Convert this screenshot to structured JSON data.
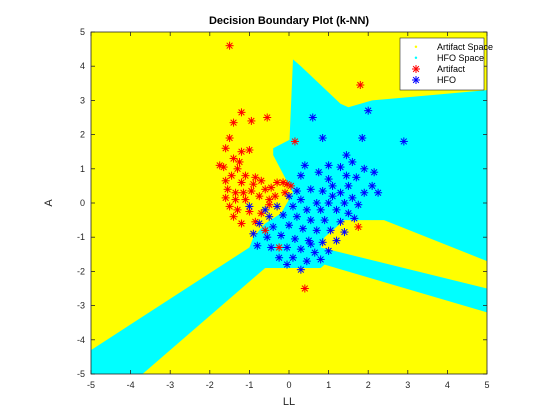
{
  "chart_data": {
    "type": "scatter",
    "title": "Decision Boundary Plot (k-NN)",
    "xlabel": "LL",
    "ylabel": "A",
    "xlim": [
      -5,
      5
    ],
    "ylim": [
      -5,
      5
    ],
    "xticks": [
      "-5",
      "-4",
      "-3",
      "-2",
      "-1",
      "0",
      "1",
      "2",
      "3",
      "4",
      "5"
    ],
    "yticks": [
      "-5",
      "-4",
      "-3",
      "-2",
      "-1",
      "0",
      "1",
      "2",
      "3",
      "4",
      "5"
    ],
    "grid": false,
    "legend_position": "top-right",
    "legend": [
      "Artifact Space",
      "HFO Space",
      "Artifact",
      "HFO"
    ],
    "colors": {
      "artifact_space": "#ffff00",
      "hfo_space": "#00ffff",
      "artifact": "#ff0000",
      "hfo": "#0000ff"
    },
    "regions": {
      "artifact_space": [
        {
          "polygon": [
            [
              -5,
              5
            ],
            [
              5,
              5
            ],
            [
              5,
              -5
            ],
            [
              -5,
              -5
            ]
          ]
        }
      ],
      "hfo_space": [
        {
          "polygon": [
            [
              0.1,
              4.2
            ],
            [
              0.3,
              4.0
            ],
            [
              1.3,
              2.9
            ],
            [
              1.5,
              2.8
            ],
            [
              2.1,
              3.0
            ],
            [
              5,
              3.3
            ],
            [
              5,
              -1.7
            ],
            [
              2.4,
              -0.5
            ],
            [
              1.4,
              -0.5
            ],
            [
              0.9,
              -1.0
            ],
            [
              0.8,
              -1.3
            ],
            [
              5,
              -2.5
            ],
            [
              5,
              -3.2
            ],
            [
              0.9,
              -1.8
            ],
            [
              0.8,
              -1.9
            ],
            [
              -0.6,
              -1.9
            ],
            [
              -3.7,
              -5
            ],
            [
              -5,
              -5
            ],
            [
              -5,
              -4.3
            ],
            [
              -1.0,
              -1.3
            ],
            [
              -0.9,
              -1.0
            ],
            [
              -0.6,
              -0.6
            ],
            [
              -0.2,
              -0.3
            ],
            [
              0.1,
              0.3
            ],
            [
              -0.4,
              1.4
            ],
            [
              -0.4,
              1.6
            ],
            [
              0.1,
              1.9
            ],
            [
              0.1,
              1.5
            ],
            [
              0.0,
              1.5
            ]
          ]
        }
      ]
    },
    "series": [
      {
        "name": "Artifact",
        "points": [
          [
            -1.5,
            4.6
          ],
          [
            1.8,
            3.45
          ],
          [
            -1.2,
            2.65
          ],
          [
            -0.55,
            2.5
          ],
          [
            -0.95,
            2.4
          ],
          [
            -1.4,
            2.35
          ],
          [
            0.15,
            1.8
          ],
          [
            -1.5,
            1.9
          ],
          [
            -1.6,
            1.6
          ],
          [
            -1.2,
            1.5
          ],
          [
            -1.0,
            1.55
          ],
          [
            -1.4,
            1.3
          ],
          [
            -1.25,
            1.2
          ],
          [
            -1.65,
            1.05
          ],
          [
            -1.75,
            1.1
          ],
          [
            -1.3,
            1.0
          ],
          [
            -1.45,
            0.8
          ],
          [
            -1.1,
            0.8
          ],
          [
            -0.85,
            0.75
          ],
          [
            -1.6,
            0.65
          ],
          [
            -1.2,
            0.6
          ],
          [
            -0.9,
            0.55
          ],
          [
            -0.7,
            0.65
          ],
          [
            -1.55,
            0.4
          ],
          [
            -1.35,
            0.3
          ],
          [
            -1.15,
            0.3
          ],
          [
            -0.95,
            0.35
          ],
          [
            -0.6,
            0.4
          ],
          [
            -0.45,
            0.45
          ],
          [
            -1.6,
            0.15
          ],
          [
            -1.35,
            0.1
          ],
          [
            -1.1,
            0.1
          ],
          [
            -0.75,
            0.2
          ],
          [
            -0.5,
            0.1
          ],
          [
            -0.3,
            0.6
          ],
          [
            -0.15,
            0.6
          ],
          [
            -0.05,
            0.55
          ],
          [
            0.05,
            0.5
          ],
          [
            -1.5,
            -0.1
          ],
          [
            -1.3,
            -0.2
          ],
          [
            -1.0,
            -0.25
          ],
          [
            -0.7,
            -0.3
          ],
          [
            -0.5,
            -0.05
          ],
          [
            -0.35,
            0.2
          ],
          [
            -1.4,
            -0.4
          ],
          [
            -0.85,
            -0.55
          ],
          [
            -0.6,
            -0.8
          ],
          [
            -1.2,
            -0.6
          ],
          [
            -0.25,
            -1.3
          ],
          [
            1.75,
            -0.7
          ],
          [
            0.4,
            -2.5
          ],
          [
            -0.1,
            0.3
          ]
        ]
      },
      {
        "name": "HFO",
        "points": [
          [
            0.6,
            2.5
          ],
          [
            2.0,
            2.7
          ],
          [
            2.9,
            1.8
          ],
          [
            0.85,
            1.9
          ],
          [
            1.85,
            1.9
          ],
          [
            1.45,
            1.4
          ],
          [
            1.6,
            1.2
          ],
          [
            0.4,
            1.1
          ],
          [
            1.0,
            1.1
          ],
          [
            1.3,
            1.05
          ],
          [
            1.9,
            1.0
          ],
          [
            2.15,
            0.9
          ],
          [
            0.75,
            0.9
          ],
          [
            1.0,
            0.7
          ],
          [
            1.45,
            0.8
          ],
          [
            1.7,
            0.75
          ],
          [
            0.3,
            0.8
          ],
          [
            1.1,
            0.5
          ],
          [
            1.5,
            0.5
          ],
          [
            2.1,
            0.5
          ],
          [
            1.3,
            0.3
          ],
          [
            1.9,
            0.3
          ],
          [
            2.25,
            0.3
          ],
          [
            0.2,
            0.35
          ],
          [
            0.55,
            0.4
          ],
          [
            0.85,
            0.35
          ],
          [
            1.1,
            0.2
          ],
          [
            1.6,
            0.15
          ],
          [
            0.0,
            0.2
          ],
          [
            0.3,
            0.1
          ],
          [
            0.7,
            0.0
          ],
          [
            1.0,
            0.0
          ],
          [
            1.4,
            0.0
          ],
          [
            1.75,
            -0.05
          ],
          [
            -0.3,
            -0.1
          ],
          [
            0.1,
            -0.1
          ],
          [
            0.45,
            -0.2
          ],
          [
            0.8,
            -0.2
          ],
          [
            1.2,
            -0.2
          ],
          [
            1.5,
            -0.3
          ],
          [
            -0.5,
            -0.4
          ],
          [
            -0.15,
            -0.35
          ],
          [
            0.2,
            -0.4
          ],
          [
            0.55,
            -0.5
          ],
          [
            0.9,
            -0.5
          ],
          [
            1.3,
            -0.55
          ],
          [
            1.65,
            -0.45
          ],
          [
            -0.75,
            -0.6
          ],
          [
            -0.4,
            -0.7
          ],
          [
            0.0,
            -0.65
          ],
          [
            0.35,
            -0.75
          ],
          [
            0.7,
            -0.8
          ],
          [
            1.05,
            -0.8
          ],
          [
            1.4,
            -0.85
          ],
          [
            -0.9,
            -0.9
          ],
          [
            -0.55,
            -1.0
          ],
          [
            -0.2,
            -0.95
          ],
          [
            0.15,
            -1.05
          ],
          [
            0.5,
            -1.1
          ],
          [
            0.85,
            -1.15
          ],
          [
            1.2,
            -1.1
          ],
          [
            -0.8,
            -1.25
          ],
          [
            -0.45,
            -1.3
          ],
          [
            -0.05,
            -1.3
          ],
          [
            0.3,
            -1.35
          ],
          [
            0.65,
            -1.45
          ],
          [
            1.0,
            -1.4
          ],
          [
            -0.25,
            -1.6
          ],
          [
            0.1,
            -1.6
          ],
          [
            0.45,
            -1.7
          ],
          [
            0.8,
            -1.65
          ],
          [
            -0.05,
            -1.8
          ],
          [
            0.3,
            -1.95
          ],
          [
            0.55,
            -1.2
          ],
          [
            -0.6,
            -0.2
          ],
          [
            -1.0,
            -0.1
          ]
        ]
      }
    ]
  }
}
